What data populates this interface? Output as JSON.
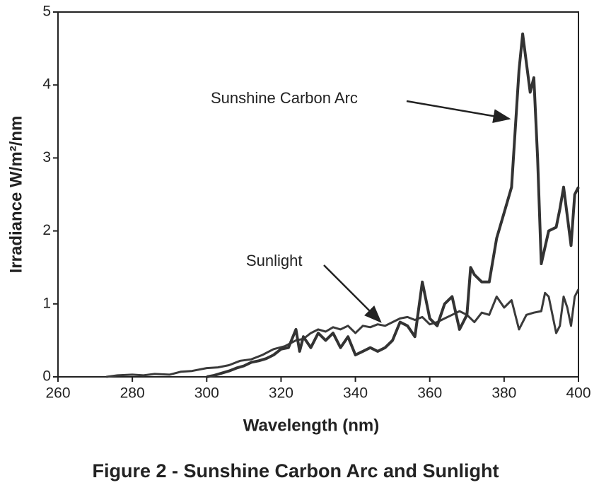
{
  "chart_data": {
    "type": "line",
    "caption": "Figure 2 - Sunshine Carbon Arc and Sunlight",
    "x_label": "Wavelength (nm)",
    "y_label": "Irradiance  W/m²/nm",
    "xlim": [
      260,
      400
    ],
    "xticks": [
      260,
      280,
      300,
      320,
      340,
      360,
      380,
      400
    ],
    "ylim": [
      0,
      5
    ],
    "yticks": [
      0,
      1,
      2,
      3,
      4,
      5
    ],
    "grid": false,
    "annotations": [
      {
        "text": "Sunshine Carbon Arc"
      },
      {
        "text": "Sunlight"
      }
    ],
    "series": [
      {
        "name": "Sunlight",
        "color": "#3a3a3a",
        "x": [
          273,
          276,
          280,
          283,
          286,
          290,
          293,
          296,
          300,
          303,
          306,
          309,
          312,
          315,
          318,
          321,
          324,
          326,
          328,
          330,
          332,
          334,
          336,
          338,
          340,
          342,
          344,
          346,
          348,
          350,
          352,
          354,
          356,
          358,
          360,
          362,
          364,
          366,
          368,
          370,
          372,
          374,
          376,
          378,
          380,
          382,
          384,
          386,
          388,
          390,
          391,
          392,
          394,
          395,
          396,
          397,
          398,
          399,
          400
        ],
        "values": [
          0,
          0.02,
          0.03,
          0.02,
          0.04,
          0.03,
          0.07,
          0.08,
          0.12,
          0.13,
          0.16,
          0.22,
          0.24,
          0.3,
          0.38,
          0.42,
          0.5,
          0.52,
          0.6,
          0.65,
          0.62,
          0.68,
          0.65,
          0.7,
          0.6,
          0.7,
          0.68,
          0.72,
          0.7,
          0.75,
          0.8,
          0.82,
          0.78,
          0.82,
          0.72,
          0.75,
          0.8,
          0.85,
          0.9,
          0.85,
          0.75,
          0.88,
          0.85,
          1.1,
          0.95,
          1.05,
          0.65,
          0.85,
          0.88,
          0.9,
          1.15,
          1.1,
          0.6,
          0.7,
          1.1,
          0.95,
          0.7,
          1.1,
          1.2
        ]
      },
      {
        "name": "Sunshine Carbon Arc",
        "color": "#333333",
        "x": [
          300,
          302,
          304,
          306,
          308,
          310,
          312,
          314,
          316,
          318,
          320,
          322,
          324,
          325,
          326,
          328,
          330,
          332,
          334,
          336,
          338,
          340,
          342,
          344,
          346,
          348,
          350,
          352,
          354,
          356,
          358,
          360,
          362,
          364,
          366,
          368,
          370,
          371,
          372,
          374,
          376,
          378,
          380,
          382,
          384,
          385,
          386,
          387,
          388,
          389,
          390,
          392,
          394,
          395,
          396,
          398,
          399,
          400
        ],
        "values": [
          0,
          0.02,
          0.05,
          0.08,
          0.12,
          0.15,
          0.2,
          0.22,
          0.25,
          0.3,
          0.38,
          0.4,
          0.65,
          0.35,
          0.55,
          0.4,
          0.6,
          0.5,
          0.6,
          0.4,
          0.55,
          0.3,
          0.35,
          0.4,
          0.35,
          0.4,
          0.5,
          0.75,
          0.7,
          0.55,
          1.3,
          0.8,
          0.7,
          1.0,
          1.1,
          0.65,
          0.85,
          1.5,
          1.4,
          1.3,
          1.3,
          1.9,
          2.25,
          2.6,
          4.2,
          4.7,
          4.3,
          3.9,
          4.1,
          3.0,
          1.55,
          2.0,
          2.05,
          2.3,
          2.6,
          1.8,
          2.5,
          2.6
        ]
      }
    ]
  }
}
